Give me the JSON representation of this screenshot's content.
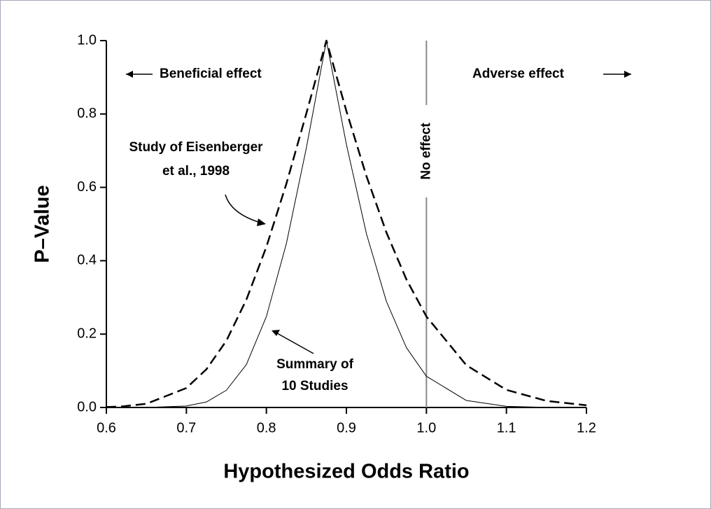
{
  "chart_data": {
    "type": "line",
    "xlabel": "Hypothesized Odds Ratio",
    "ylabel": "P–Value",
    "x": [
      0.6,
      0.62,
      0.65,
      0.7,
      0.725,
      0.75,
      0.775,
      0.8,
      0.825,
      0.85,
      0.875,
      0.9,
      0.925,
      0.95,
      0.975,
      1.0,
      1.05,
      1.1,
      1.15,
      1.2
    ],
    "series": [
      {
        "color": "#000000",
        "dashed": true,
        "values": [
          0.0011,
          0.0029,
          0.01,
          0.053,
          0.104,
          0.182,
          0.294,
          0.438,
          0.61,
          0.802,
          1.0,
          0.808,
          0.631,
          0.477,
          0.349,
          0.248,
          0.115,
          0.048,
          0.018,
          0.006
        ]
      },
      {
        "color": "#000000",
        "dashed": false,
        "values": [
          0,
          0,
          0.0001,
          0.004,
          0.015,
          0.047,
          0.117,
          0.248,
          0.447,
          0.708,
          1.0,
          0.717,
          0.474,
          0.289,
          0.163,
          0.085,
          0.019,
          0.003,
          0.0004,
          0
        ]
      }
    ],
    "xlim": [
      0.6,
      1.2
    ],
    "ylim": [
      0,
      1
    ],
    "xticks": [
      0.6,
      0.7,
      0.8,
      0.9,
      {
        "value": 1,
        "label": "1.0"
      },
      1.1,
      1.2
    ],
    "yticks": [
      {
        "value": 0,
        "label": "0.0"
      },
      0.2,
      0.4,
      0.6,
      0.8,
      {
        "value": 1,
        "label": "1.0"
      }
    ],
    "reference_line": {
      "x": 1,
      "label": "No effect",
      "color": "#888888"
    },
    "annotations": {
      "beneficial": "Beneficial effect",
      "adverse": "Adverse effect",
      "study": [
        "Study of Eisenberger",
        "et al., 1998"
      ],
      "summary": [
        "Summary of",
        "10 Studies"
      ]
    }
  }
}
